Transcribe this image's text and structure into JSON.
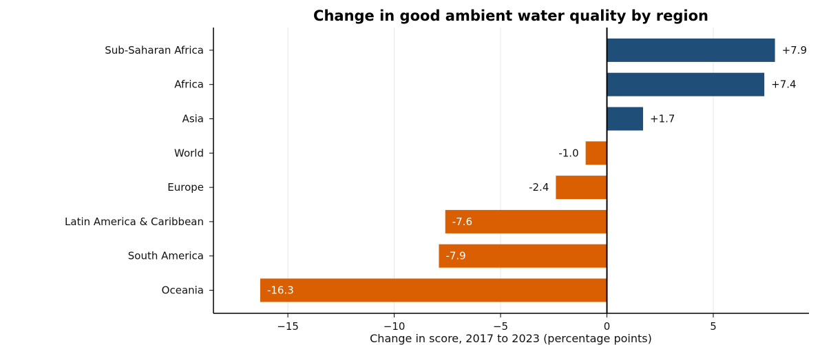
{
  "chart_data": {
    "type": "bar",
    "orientation": "horizontal",
    "title": "Change in good ambient water quality by region",
    "xlabel": "Change in score, 2017 to 2023 (percentage points)",
    "ylabel": "",
    "xlim": [
      -18.5,
      9.5
    ],
    "xticks": [
      -15,
      -10,
      -5,
      0,
      5
    ],
    "xtick_labels": [
      "−15",
      "−10",
      "−5",
      "0",
      "5"
    ],
    "grid": "vertical",
    "categories": [
      "Sub-Saharan Africa",
      "Africa",
      "Asia",
      "World",
      "Europe",
      "Latin America & Caribbean",
      "South America",
      "Oceania"
    ],
    "values": [
      7.9,
      7.4,
      1.7,
      -1.0,
      -2.4,
      -7.6,
      -7.9,
      -16.3
    ],
    "data_labels": [
      "+7.9",
      "+7.4",
      "+1.7",
      "-1.0",
      "-2.4",
      "-7.6",
      "-7.9",
      "-16.3"
    ],
    "colors": {
      "positive": "#1f4e79",
      "negative": "#d95f02",
      "grid": "#e6e6e6",
      "axis": "#000000"
    }
  }
}
